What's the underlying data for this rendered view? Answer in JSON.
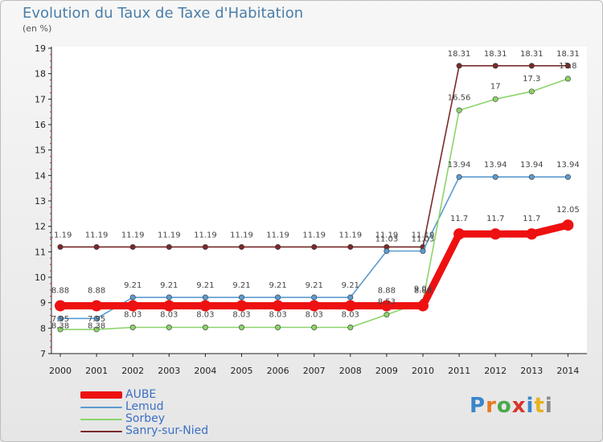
{
  "title": "Evolution du Taux de Taxe d'Habitation",
  "unit_label": "(en %)",
  "logo": {
    "text": "Proxiti",
    "letter_colors": [
      "#3a86c9",
      "#e8791e",
      "#4aa84a",
      "#d8352c",
      "#3a86c9",
      "#e8b21e",
      "#8a8a8a"
    ]
  },
  "chart_data": {
    "type": "line",
    "title": "Evolution du Taux de Taxe d'Habitation",
    "ylabel": "(en %)",
    "xlabel": "",
    "ylim": [
      7,
      19
    ],
    "yticks": [
      "7",
      "8",
      "9",
      "10",
      "11",
      "12",
      "13",
      "14",
      "15",
      "16",
      "17",
      "18",
      "19"
    ],
    "categories": [
      "2000",
      "2001",
      "2002",
      "2003",
      "2004",
      "2005",
      "2006",
      "2007",
      "2008",
      "2009",
      "2010",
      "2011",
      "2012",
      "2013",
      "2014"
    ],
    "grid": false,
    "legend_position": "bottom-left",
    "series": [
      {
        "name": "Sanry-sur-Nied",
        "color": "#7a2a2a",
        "values": [
          11.19,
          11.19,
          11.19,
          11.19,
          11.19,
          11.19,
          11.19,
          11.19,
          11.19,
          11.19,
          11.19,
          18.31,
          18.31,
          18.31,
          18.31
        ],
        "labels": [
          "11.19",
          "11.19",
          "11.19",
          "11.19",
          "11.19",
          "11.19",
          "11.19",
          "11.19",
          "11.19",
          "11.19",
          "11.19",
          "18.31",
          "18.31",
          "18.31",
          "18.31"
        ]
      },
      {
        "name": "Lemud",
        "color": "#5b9bd0",
        "values": [
          8.38,
          8.38,
          9.21,
          9.21,
          9.21,
          9.21,
          9.21,
          9.21,
          9.21,
          11.03,
          11.03,
          13.94,
          13.94,
          13.94,
          13.94
        ],
        "labels": [
          "8.38",
          "8.38",
          "9.21",
          "9.21",
          "9.21",
          "9.21",
          "9.21",
          "9.21",
          "9.21",
          "11.03",
          "11.03",
          "13.94",
          "13.94",
          "13.94",
          "13.94"
        ]
      },
      {
        "name": "Sorbey",
        "color": "#8cd46a",
        "values": [
          7.95,
          7.95,
          8.03,
          8.03,
          8.03,
          8.03,
          8.03,
          8.03,
          8.03,
          8.53,
          9.04,
          16.56,
          17,
          17.3,
          17.8
        ],
        "labels": [
          "7.95",
          "7.95",
          "8.03",
          "8.03",
          "8.03",
          "8.03",
          "8.03",
          "8.03",
          "8.03",
          "8.53",
          "9.04",
          "16.56",
          "17",
          "17.3",
          "17.8"
        ]
      },
      {
        "name": "AUBE",
        "color": "#ee1111",
        "values": [
          8.88,
          8.88,
          8.88,
          8.88,
          8.88,
          8.88,
          8.88,
          8.88,
          8.88,
          8.88,
          8.88,
          11.7,
          11.7,
          11.7,
          12.05
        ],
        "labels": [
          "8.88",
          "8.88",
          "",
          "",
          "",
          "",
          "",
          "",
          "",
          "8.88",
          "8.88",
          "11.7",
          "11.7",
          "11.7",
          "12.05"
        ]
      }
    ],
    "legend": [
      "AUBE",
      "Lemud",
      "Sorbey",
      "Sanry-sur-Nied"
    ]
  }
}
